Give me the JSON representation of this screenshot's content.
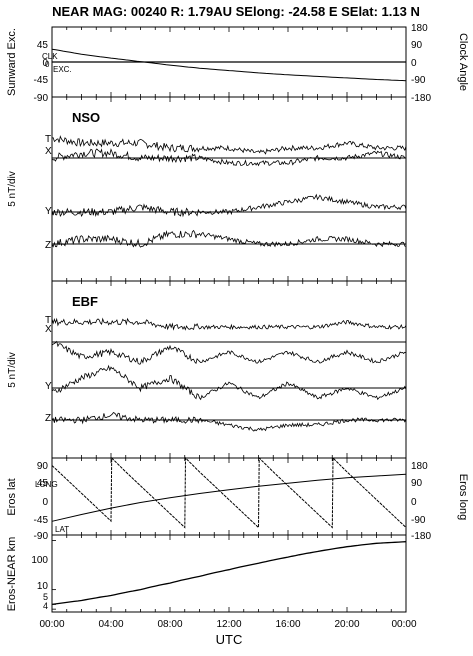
{
  "header": {
    "title": "NEAR MAG: 00240  R: 1.79AU  SElong:  -24.58 E  SElat:    1.13 N"
  },
  "x_axis": {
    "label": "UTC",
    "ticks": [
      "00:00",
      "04:00",
      "08:00",
      "12:00",
      "16:00",
      "20:00",
      "00:00"
    ],
    "range_hours": [
      0,
      24
    ]
  },
  "chart_data": [
    {
      "type": "line",
      "panel": "sunward-clock",
      "ylabel_left": "Sunward Exc.",
      "ylabel_right": "Clock Angle",
      "yticks_left": [
        "45",
        "0",
        "-45",
        "-90"
      ],
      "yticks_right": [
        "180",
        "90",
        "0",
        "-90",
        "-180"
      ],
      "ylim_left": [
        -90,
        90
      ],
      "ylim_right": [
        -180,
        180
      ],
      "annotations": [
        "CLK",
        "0",
        "EXC."
      ],
      "series": [
        {
          "name": "CLK",
          "x": [
            0,
            2,
            4,
            6,
            8,
            10,
            12,
            14,
            16,
            18,
            20,
            22,
            24
          ],
          "y": [
            0,
            0,
            0,
            0,
            0,
            0,
            0,
            0,
            0,
            0,
            0,
            0,
            0
          ]
        },
        {
          "name": "EXC.",
          "x": [
            0,
            2,
            4,
            6,
            8,
            10,
            12,
            14,
            16,
            18,
            20,
            22,
            24
          ],
          "y": [
            33,
            20,
            10,
            1,
            -8,
            -16,
            -22,
            -28,
            -33,
            -37,
            -41,
            -45,
            -48
          ]
        }
      ]
    },
    {
      "type": "line",
      "panel": "NSO",
      "title": "NSO",
      "ylabel": "5 nT/div",
      "trace_labels": [
        "T",
        "X",
        "Y",
        "Z"
      ],
      "series": [
        {
          "name": "T",
          "x": [
            0,
            2,
            4,
            6,
            8,
            10,
            12,
            14,
            16,
            18,
            20,
            22,
            24
          ],
          "y": [
            2,
            1,
            1,
            1,
            0,
            0,
            0,
            -1,
            0,
            0,
            1,
            0,
            0
          ]
        },
        {
          "name": "X",
          "x": [
            0,
            2,
            4,
            6,
            8,
            10,
            12,
            14,
            16,
            18,
            20,
            22,
            24
          ],
          "y": [
            0,
            1,
            1,
            0,
            0,
            0,
            -1,
            -1,
            -1,
            0,
            0,
            1,
            0
          ]
        },
        {
          "name": "Y",
          "x": [
            0,
            2,
            4,
            6,
            8,
            10,
            12,
            14,
            16,
            18,
            20,
            22,
            24
          ],
          "y": [
            0,
            0,
            0,
            1,
            0,
            0,
            0,
            1,
            2,
            3,
            2,
            1,
            1
          ]
        },
        {
          "name": "Z",
          "x": [
            0,
            2,
            4,
            6,
            8,
            10,
            12,
            14,
            16,
            18,
            20,
            22,
            24
          ],
          "y": [
            0,
            1,
            1,
            0,
            2,
            2,
            1,
            0,
            0,
            1,
            1,
            0,
            0
          ]
        }
      ]
    },
    {
      "type": "line",
      "panel": "EBF",
      "title": "EBF",
      "ylabel": "5 nT/div",
      "trace_labels": [
        "T",
        "X",
        "Y",
        "Z"
      ],
      "series": [
        {
          "name": "T",
          "x": [
            0,
            2,
            4,
            6,
            8,
            10,
            12,
            14,
            16,
            18,
            20,
            22,
            24
          ],
          "y": [
            1,
            1,
            1,
            1,
            0,
            0,
            0,
            0,
            0,
            0,
            1,
            0,
            0
          ]
        },
        {
          "name": "X",
          "x": [
            0,
            2,
            4,
            6,
            8,
            10,
            12,
            14,
            16,
            18,
            20,
            22,
            24
          ],
          "y": [
            0,
            -3,
            -2,
            -4,
            -1,
            -4,
            -2,
            -4,
            -2,
            -4,
            -2,
            -4,
            -2
          ]
        },
        {
          "name": "Y",
          "x": [
            0,
            2,
            4,
            6,
            8,
            10,
            12,
            14,
            16,
            18,
            20,
            22,
            24
          ],
          "y": [
            -1,
            2,
            4,
            0,
            2,
            -2,
            1,
            -2,
            1,
            -2,
            0,
            -2,
            0
          ]
        },
        {
          "name": "Z",
          "x": [
            0,
            2,
            4,
            6,
            8,
            10,
            12,
            14,
            16,
            18,
            20,
            22,
            24
          ],
          "y": [
            0,
            0,
            1,
            0,
            0,
            0,
            -1,
            -2,
            -1,
            -1,
            0,
            0,
            0
          ]
        }
      ]
    },
    {
      "type": "line",
      "panel": "eros-lat-long",
      "ylabel_left": "Eros lat",
      "ylabel_right": "Eros long",
      "yticks_left": [
        "90",
        "45",
        "0",
        "-45",
        "-90"
      ],
      "yticks_right": [
        "180",
        "90",
        "0",
        "-90",
        "-180"
      ],
      "ylim_left": [
        -90,
        90
      ],
      "ylim_right": [
        -180,
        180
      ],
      "annotations": [
        "LONG",
        "LAT"
      ],
      "series": [
        {
          "name": "LAT",
          "x": [
            0,
            2,
            4,
            6,
            8,
            10,
            12,
            14,
            16,
            18,
            20,
            22,
            24
          ],
          "y": [
            -58,
            -42,
            -27,
            -14,
            -3,
            7,
            16,
            24,
            31,
            38,
            44,
            48,
            52
          ]
        },
        {
          "name": "LONG",
          "x": [
            0,
            1,
            2,
            3,
            4,
            4.05,
            5,
            6,
            7,
            8,
            9,
            9.05,
            10,
            11,
            12,
            13,
            14,
            14.05,
            15,
            16,
            17,
            18,
            19,
            19.05,
            20,
            21,
            22,
            23,
            24
          ],
          "y": [
            145,
            80,
            15,
            -50,
            -115,
            180,
            115,
            50,
            -15,
            -80,
            -145,
            180,
            115,
            50,
            -15,
            -80,
            -145,
            180,
            115,
            50,
            -15,
            -80,
            -145,
            180,
            115,
            50,
            -15,
            -80,
            -145
          ]
        }
      ]
    },
    {
      "type": "line",
      "panel": "eros-near-distance",
      "ylabel": "Eros-NEAR km",
      "yticks": [
        "100",
        "10",
        "5",
        "4"
      ],
      "yscale": "log",
      "ylim": [
        3.5,
        130
      ],
      "series": [
        {
          "name": "",
          "x": [
            0,
            2,
            4,
            6,
            8,
            10,
            12,
            14,
            16,
            18,
            20,
            22,
            24
          ],
          "y": [
            5.0,
            6.0,
            7.6,
            10.0,
            13.6,
            18.6,
            25.5,
            34.5,
            46,
            60,
            75,
            88,
            95
          ]
        }
      ]
    }
  ]
}
